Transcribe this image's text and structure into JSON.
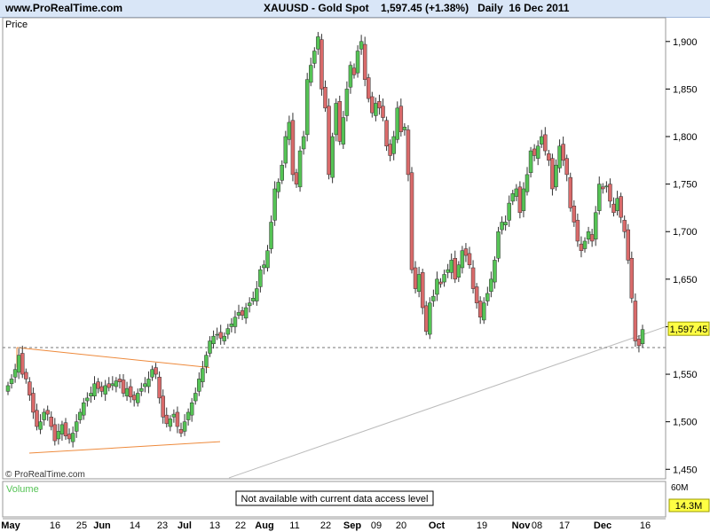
{
  "header": {
    "site": "www.ProRealTime.com",
    "title": "XAUUSD - Gold Spot    1,597.45 (+1.38%)   Daily  16 Dec 2011"
  },
  "price_panel": {
    "label": "Price",
    "copyright": "© ProRealTime.com",
    "last_price_label": "1,597.45"
  },
  "volume_panel": {
    "label": "Volume",
    "message": "Not available with current data access level",
    "scale_top": "60M",
    "value_badge": "14.3M"
  },
  "colors": {
    "up": "#55c355",
    "down": "#d96a6a",
    "triangle": "#ee8a3c",
    "trendline": "#bbbbbb",
    "badge": "#ffff44",
    "header_bg": "#d9e6f7"
  },
  "chart_data": {
    "type": "candlestick",
    "title": "XAUUSD - Gold Spot",
    "ylabel": "Price",
    "ylim": [
      1440,
      1925
    ],
    "y_ticks": [
      1450,
      1500,
      1550,
      1600,
      1650,
      1700,
      1750,
      1800,
      1850,
      1900
    ],
    "y_tick_labels": [
      "1,450",
      "1,500",
      "1,550",
      "1,600",
      "1,650",
      "1,700",
      "1,750",
      "1,800",
      "1,850",
      "1,900"
    ],
    "last_price": 1597.45,
    "reference_price": 1578,
    "x_labels": [
      "May",
      "16",
      "25",
      "Jun",
      "14",
      "23",
      "Jul",
      "13",
      "22",
      "Aug",
      "11",
      "22",
      "Sep",
      "09",
      "20",
      "Oct",
      "19",
      "Nov",
      "08",
      "17",
      "Dec",
      "16"
    ],
    "date_range": [
      "2011-05-02",
      "2011-12-16"
    ],
    "series_close": [
      1538,
      1545,
      1555,
      1570,
      1550,
      1545,
      1528,
      1510,
      1495,
      1500,
      1510,
      1508,
      1495,
      1480,
      1490,
      1497,
      1485,
      1482,
      1488,
      1500,
      1510,
      1520,
      1525,
      1530,
      1540,
      1535,
      1532,
      1538,
      1536,
      1540,
      1543,
      1542,
      1530,
      1535,
      1526,
      1523,
      1530,
      1535,
      1540,
      1545,
      1555,
      1550,
      1525,
      1505,
      1498,
      1503,
      1508,
      1495,
      1488,
      1500,
      1510,
      1520,
      1530,
      1545,
      1556,
      1570,
      1585,
      1590,
      1592,
      1588,
      1590,
      1598,
      1603,
      1610,
      1615,
      1612,
      1620,
      1625,
      1630,
      1640,
      1660,
      1665,
      1680,
      1710,
      1745,
      1752,
      1770,
      1800,
      1815,
      1760,
      1750,
      1785,
      1800,
      1860,
      1875,
      1890,
      1905,
      1850,
      1830,
      1760,
      1800,
      1835,
      1795,
      1820,
      1850,
      1875,
      1865,
      1890,
      1900,
      1860,
      1840,
      1825,
      1835,
      1830,
      1820,
      1790,
      1780,
      1800,
      1830,
      1805,
      1810,
      1760,
      1660,
      1640,
      1655,
      1620,
      1595,
      1625,
      1632,
      1650,
      1645,
      1655,
      1660,
      1670,
      1650,
      1665,
      1680,
      1675,
      1665,
      1640,
      1625,
      1610,
      1625,
      1635,
      1650,
      1670,
      1700,
      1710,
      1710,
      1730,
      1740,
      1745,
      1720,
      1745,
      1760,
      1785,
      1780,
      1790,
      1800,
      1785,
      1775,
      1745,
      1770,
      1790,
      1775,
      1760,
      1725,
      1710,
      1690,
      1680,
      1690,
      1700,
      1690,
      1720,
      1750,
      1745,
      1748,
      1732,
      1720,
      1735,
      1715,
      1700,
      1670,
      1630,
      1585,
      1580,
      1597
    ]
  }
}
